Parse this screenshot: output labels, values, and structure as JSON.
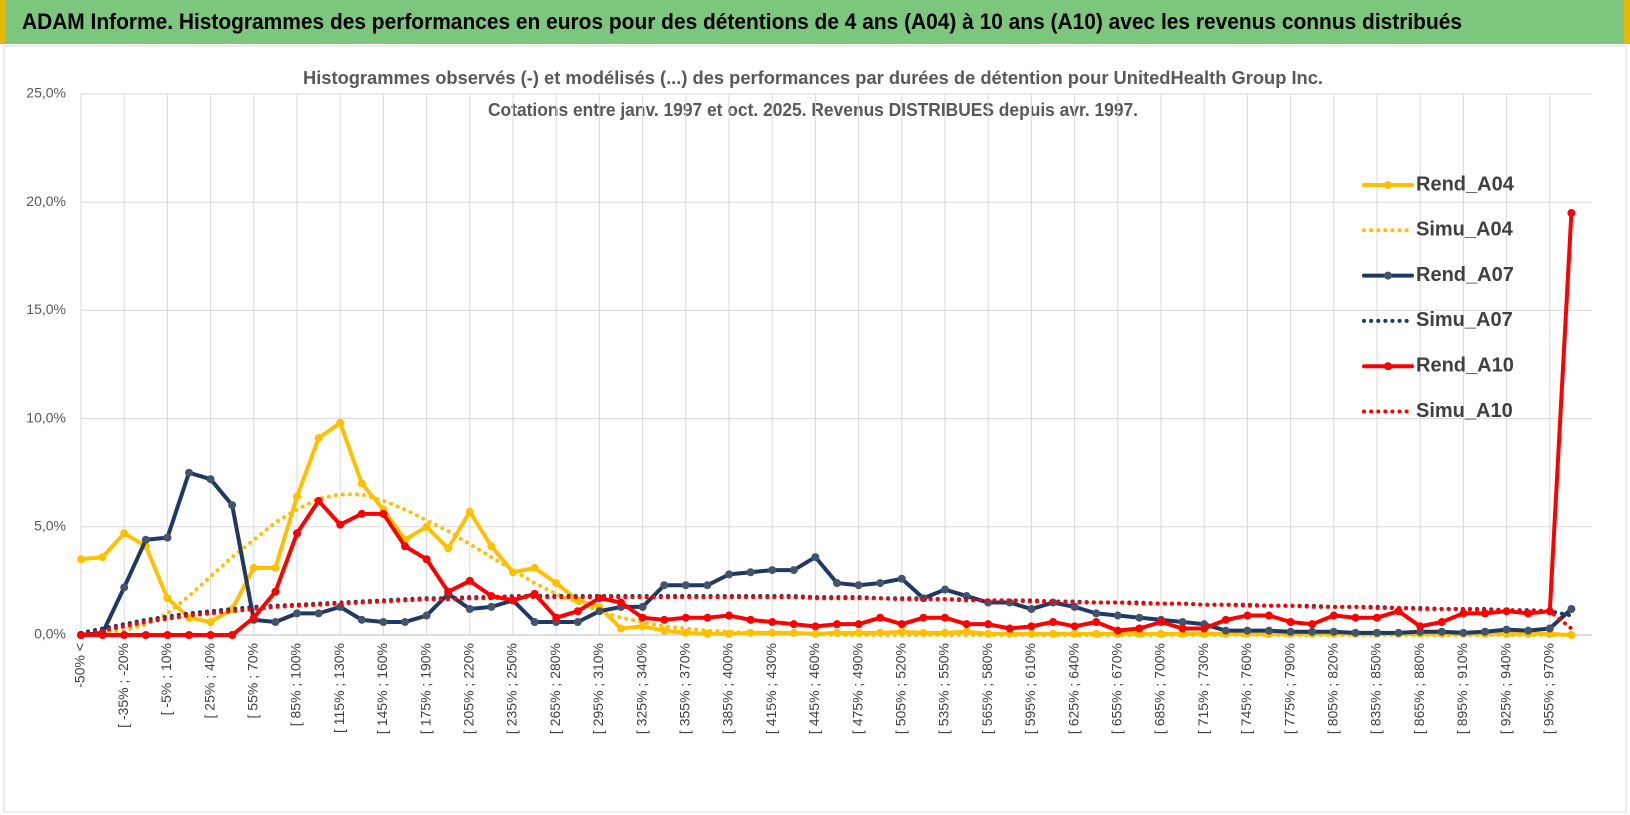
{
  "chart_data": {
    "type": "line",
    "header": "ADAM Informe. Histogrammes des performances en euros pour des détentions de 4 ans (A04) à 10 ans (A10) avec les revenus connus distribués",
    "title": "Histogrammes observés (-) et modélisés (...) des performances par durées de détention pour UnitedHealth Group Inc.",
    "subtitle": "Cotations entre janv. 1997 et oct. 2025.  Revenus DISTRIBUES depuis avr. 1997.",
    "categories": [
      "-50% <",
      null,
      "[ -35% ; -20%",
      null,
      "[ -5% ; 10%",
      null,
      "[ 25% ; 40%",
      null,
      "[ 55% ; 70%",
      null,
      "[ 85% ; 100%",
      null,
      "[ 115% ; 130%",
      null,
      "[ 145% ; 160%",
      null,
      "[ 175% ; 190%",
      null,
      "[ 205% ; 220%",
      null,
      "[ 235% ; 250%",
      null,
      "[ 265% ; 280%",
      null,
      "[ 295% ; 310%",
      null,
      "[ 325% ; 340%",
      null,
      "[ 355% ; 370%",
      null,
      "[ 385% ; 400%",
      null,
      "[ 415% ; 430%",
      null,
      "[ 445% ; 460%",
      null,
      "[ 475% ; 490%",
      null,
      "[ 505% ; 520%",
      null,
      "[ 535% ; 550%",
      null,
      "[ 565% ; 580%",
      null,
      "[ 595% ; 610%",
      null,
      "[ 625% ; 640%",
      null,
      "[ 655% ; 670%",
      null,
      "[ 685% ; 700%",
      null,
      "[ 715% ; 730%",
      null,
      "[ 745% ; 760%",
      null,
      "[ 775% ; 790%",
      null,
      "[ 805% ; 820%",
      null,
      "[ 835% ; 850%",
      null,
      "[ 865% ; 880%",
      null,
      "[ 895% ; 910%",
      null,
      "[ 925% ; 940%",
      null,
      "[ 955% ; 970%",
      null
    ],
    "ylim": [
      0,
      25
    ],
    "yticks": [
      {
        "value": 0,
        "label": "0,0%"
      },
      {
        "value": 5,
        "label": "5,0%"
      },
      {
        "value": 10,
        "label": "10,0%"
      },
      {
        "value": 15,
        "label": "15,0%"
      },
      {
        "value": 20,
        "label": "20,0%"
      },
      {
        "value": 25,
        "label": "25,0%"
      }
    ],
    "grid": true,
    "legend": "right",
    "series": [
      {
        "name": "Rend_A04",
        "color": "#ffc000",
        "style": "solid",
        "values": [
          3.5,
          3.6,
          4.7,
          4.1,
          1.7,
          0.8,
          0.6,
          1.2,
          3.1,
          3.1,
          6.4,
          9.1,
          9.8,
          7.0,
          5.8,
          4.4,
          5.0,
          4.0,
          5.7,
          4.1,
          2.9,
          3.1,
          2.4,
          1.6,
          1.3,
          0.3,
          0.4,
          0.2,
          0.1,
          0.05,
          0.05,
          0.1,
          0.1,
          0.1,
          0.05,
          0.1,
          0.1,
          0.1,
          0.15,
          0.1,
          0.1,
          0.15,
          0.05,
          0.05,
          0.05,
          0.05,
          0.05,
          0.05,
          0.05,
          0.05,
          0.05,
          0.05,
          0.05,
          0.05,
          0.05,
          0.05,
          0.05,
          0.05,
          0.05,
          0.05,
          0.05,
          0.05,
          0.05,
          0.05,
          0.05,
          0.05,
          0.05,
          0.05,
          0.05,
          0.0
        ]
      },
      {
        "name": "Simu_A04",
        "color": "#ffc000",
        "style": "dotted",
        "values": [
          0.0,
          0.1,
          0.2,
          0.5,
          1.0,
          1.8,
          2.7,
          3.6,
          4.4,
          5.2,
          5.8,
          6.3,
          6.5,
          6.5,
          6.2,
          5.8,
          5.3,
          4.8,
          4.2,
          3.6,
          3.0,
          2.4,
          1.9,
          1.5,
          1.1,
          0.8,
          0.6,
          0.4,
          0.3,
          0.2,
          0.15,
          0.1,
          0.1,
          0.05,
          0.05,
          0,
          0,
          0,
          0,
          0,
          0,
          0,
          0,
          0,
          0,
          0,
          0,
          0,
          0,
          0,
          0,
          0,
          0,
          0,
          0,
          0,
          0,
          0,
          0,
          0,
          0,
          0,
          0,
          0,
          0,
          0,
          0,
          0,
          0,
          0
        ]
      },
      {
        "name": "Rend_A07",
        "color": "#1f3864",
        "style": "solid",
        "values": [
          0,
          0.1,
          2.2,
          4.4,
          4.5,
          7.5,
          7.2,
          6.0,
          0.7,
          0.6,
          1.0,
          1.0,
          1.3,
          0.7,
          0.6,
          0.6,
          0.9,
          1.9,
          1.2,
          1.3,
          1.6,
          0.6,
          0.6,
          0.6,
          1.1,
          1.3,
          1.3,
          2.3,
          2.3,
          2.3,
          2.8,
          2.9,
          3.0,
          3.0,
          3.6,
          2.4,
          2.3,
          2.4,
          2.6,
          1.7,
          2.1,
          1.8,
          1.5,
          1.5,
          1.2,
          1.5,
          1.3,
          1.0,
          0.9,
          0.8,
          0.7,
          0.6,
          0.5,
          0.2,
          0.2,
          0.2,
          0.15,
          0.15,
          0.15,
          0.1,
          0.1,
          0.1,
          0.15,
          0.15,
          0.1,
          0.15,
          0.25,
          0.2,
          0.3,
          1.2
        ]
      },
      {
        "name": "Simu_A07",
        "color": "#1f3864",
        "style": "dotted",
        "values": [
          0.1,
          0.3,
          0.5,
          0.7,
          0.85,
          1.0,
          1.1,
          1.2,
          1.3,
          1.35,
          1.4,
          1.45,
          1.5,
          1.55,
          1.6,
          1.65,
          1.7,
          1.7,
          1.75,
          1.75,
          1.8,
          1.8,
          1.8,
          1.8,
          1.8,
          1.8,
          1.8,
          1.8,
          1.8,
          1.8,
          1.8,
          1.8,
          1.8,
          1.8,
          1.75,
          1.75,
          1.75,
          1.7,
          1.7,
          1.7,
          1.65,
          1.65,
          1.6,
          1.6,
          1.6,
          1.55,
          1.55,
          1.5,
          1.5,
          1.5,
          1.45,
          1.45,
          1.4,
          1.4,
          1.4,
          1.35,
          1.35,
          1.35,
          1.3,
          1.3,
          1.3,
          1.25,
          1.25,
          1.2,
          1.2,
          1.2,
          1.15,
          1.15,
          1.1,
          0.9
        ]
      },
      {
        "name": "Rend_A10",
        "color": "#ff0000",
        "style": "solid",
        "values": [
          0,
          0,
          0,
          0,
          0,
          0,
          0,
          0,
          0.8,
          2.0,
          4.7,
          6.2,
          5.1,
          5.6,
          5.6,
          4.1,
          3.5,
          2.0,
          2.5,
          1.8,
          1.6,
          1.9,
          0.8,
          1.1,
          1.7,
          1.5,
          0.8,
          0.7,
          0.8,
          0.8,
          0.9,
          0.7,
          0.6,
          0.5,
          0.4,
          0.5,
          0.5,
          0.8,
          0.5,
          0.8,
          0.8,
          0.5,
          0.5,
          0.3,
          0.4,
          0.6,
          0.4,
          0.6,
          0.2,
          0.3,
          0.6,
          0.3,
          0.3,
          0.7,
          0.9,
          0.9,
          0.6,
          0.5,
          0.9,
          0.8,
          0.8,
          1.1,
          0.4,
          0.6,
          1.0,
          1.0,
          1.1,
          1.0,
          1.1,
          19.5
        ]
      },
      {
        "name": "Simu_A10",
        "color": "#ff0000",
        "style": "dotted",
        "values": [
          0.0,
          0.2,
          0.4,
          0.6,
          0.75,
          0.9,
          1.0,
          1.1,
          1.2,
          1.3,
          1.35,
          1.4,
          1.45,
          1.5,
          1.55,
          1.6,
          1.65,
          1.65,
          1.7,
          1.7,
          1.75,
          1.75,
          1.75,
          1.75,
          1.75,
          1.75,
          1.75,
          1.75,
          1.75,
          1.75,
          1.75,
          1.75,
          1.75,
          1.75,
          1.7,
          1.7,
          1.7,
          1.7,
          1.65,
          1.65,
          1.65,
          1.6,
          1.6,
          1.6,
          1.55,
          1.55,
          1.5,
          1.5,
          1.5,
          1.45,
          1.45,
          1.45,
          1.4,
          1.4,
          1.35,
          1.35,
          1.35,
          1.3,
          1.3,
          1.3,
          1.25,
          1.25,
          1.2,
          1.2,
          1.2,
          1.15,
          1.15,
          1.1,
          1.1,
          0.3
        ]
      }
    ]
  }
}
